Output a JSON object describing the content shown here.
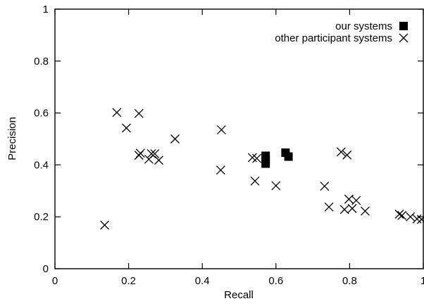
{
  "chart_data": {
    "type": "scatter",
    "xlabel": "Recall",
    "ylabel": "Precision",
    "xlim": [
      0,
      1
    ],
    "ylim": [
      0,
      1
    ],
    "xticks": [
      "0",
      "0.2",
      "0.4",
      "0.6",
      "0.8",
      "1"
    ],
    "yticks": [
      "0",
      "0.2",
      "0.4",
      "0.6",
      "0.8",
      "1"
    ],
    "grid": false,
    "legend_position": "top-right",
    "series": [
      {
        "name": "our systems",
        "marker": "filled-square",
        "points": [
          [
            0.572,
            0.435
          ],
          [
            0.572,
            0.42
          ],
          [
            0.572,
            0.405
          ],
          [
            0.626,
            0.447
          ],
          [
            0.634,
            0.432
          ]
        ]
      },
      {
        "name": "other participant systems",
        "marker": "cross",
        "points": [
          [
            0.135,
            0.168
          ],
          [
            0.168,
            0.602
          ],
          [
            0.194,
            0.542
          ],
          [
            0.228,
            0.598
          ],
          [
            0.228,
            0.437
          ],
          [
            0.232,
            0.445
          ],
          [
            0.255,
            0.422
          ],
          [
            0.262,
            0.443
          ],
          [
            0.271,
            0.443
          ],
          [
            0.282,
            0.418
          ],
          [
            0.326,
            0.5
          ],
          [
            0.452,
            0.535
          ],
          [
            0.45,
            0.38
          ],
          [
            0.536,
            0.428
          ],
          [
            0.548,
            0.425
          ],
          [
            0.543,
            0.338
          ],
          [
            0.6,
            0.32
          ],
          [
            0.732,
            0.318
          ],
          [
            0.744,
            0.238
          ],
          [
            0.777,
            0.45
          ],
          [
            0.793,
            0.438
          ],
          [
            0.798,
            0.268
          ],
          [
            0.786,
            0.228
          ],
          [
            0.807,
            0.232
          ],
          [
            0.818,
            0.263
          ],
          [
            0.842,
            0.222
          ],
          [
            0.935,
            0.21
          ],
          [
            0.942,
            0.205
          ],
          [
            0.965,
            0.2
          ],
          [
            0.983,
            0.192
          ],
          [
            0.995,
            0.19
          ]
        ]
      }
    ]
  }
}
